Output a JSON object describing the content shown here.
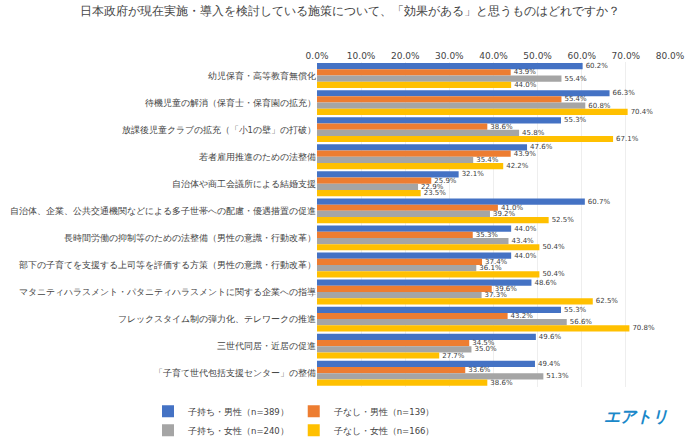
{
  "chart_data": {
    "type": "bar",
    "orientation": "horizontal",
    "title": "日本政府が現在実施・導入を検討している施策について、「効果がある」と思うものはどれですか？",
    "categories": [
      "幼児保育・高等教育無償化",
      "待機児童の解消（保育士・保育園の拡充）",
      "放課後児童クラブの拡充（「小1の壁」の打破）",
      "若者雇用推進のための法整備",
      "自治体や商工会議所による結婚支援",
      "自治体、企業、公共交通機関などによる多子世帯への配慮・優遇措置の促進",
      "長時間労働の抑制等のための法整備（男性の意識・行動改革）",
      "部下の子育てを支援する上司等を評価する方策（男性の意識・行動改革）",
      "マタニティハラスメント・パタニティハラスメントに関する企業への指導",
      "フレックスタイム制の弾力化、テレワークの推進",
      "三世代同居・近居の促進",
      "「子育て世代包括支援センター」の整備"
    ],
    "series": [
      {
        "name": "子持ち・男性（n=389）",
        "color": "#4472c4",
        "values": [
          60.2,
          66.3,
          55.3,
          47.6,
          32.1,
          60.7,
          44.0,
          44.0,
          48.6,
          55.3,
          49.6,
          49.4
        ],
        "value_labels": [
          "60.2%",
          "66.3%",
          "55.3%",
          "47.6%",
          "32.1%",
          "60.7%",
          "44.0%",
          "44.0%",
          "48.6%",
          "55.3%",
          "49.6%",
          "49.4%"
        ]
      },
      {
        "name": "子なし・男性（n=139）",
        "color": "#ed7d31",
        "values": [
          43.9,
          55.4,
          38.6,
          43.9,
          25.9,
          41.0,
          35.3,
          37.4,
          39.6,
          43.2,
          34.5,
          33.6
        ],
        "value_labels": [
          "43.9%",
          "55.4%",
          "38.6%",
          "43.9%",
          "25.9%",
          "41.0%",
          "35.3%",
          "37.4%",
          "39.6%",
          "43.2%",
          "34.5%",
          "33.6%"
        ]
      },
      {
        "name": "子持ち・女性（n=240）",
        "color": "#a5a5a5",
        "values": [
          55.4,
          60.8,
          45.8,
          35.4,
          22.9,
          39.2,
          43.4,
          36.1,
          37.3,
          56.6,
          35.0,
          51.3
        ],
        "value_labels": [
          "55.4%",
          "60.8%",
          "45.8%",
          "35.4%",
          "22.9%",
          "39.2%",
          "43.4%",
          "36.1%",
          "37.3%",
          "56.6%",
          "35.0%",
          "51.3%"
        ]
      },
      {
        "name": "子なし・女性（n=166）",
        "color": "#ffc000",
        "values": [
          44.0,
          70.4,
          67.1,
          42.2,
          23.5,
          52.5,
          50.4,
          50.4,
          62.5,
          70.8,
          27.7,
          38.6
        ],
        "value_labels": [
          "44.0%",
          "70.4%",
          "67.1%",
          "42.2%",
          "23.5%",
          "52.5%",
          "50.4%",
          "50.4%",
          "62.5%",
          "70.8%",
          "27.7%",
          "38.6%"
        ]
      }
    ],
    "xlim": [
      0,
      80
    ],
    "xticks": [
      {
        "value": 0,
        "label": "0.0%"
      },
      {
        "value": 10,
        "label": "10.0%"
      },
      {
        "value": 20,
        "label": "20.0%"
      },
      {
        "value": 30,
        "label": "30.0%"
      },
      {
        "value": 40,
        "label": "40.0%"
      },
      {
        "value": 50,
        "label": "50.0%"
      },
      {
        "value": 60,
        "label": "60.0%"
      },
      {
        "value": 70,
        "label": "70.0%"
      },
      {
        "value": 80,
        "label": "80.0%"
      }
    ],
    "grid": true,
    "legend": "bottom",
    "data_labels": true,
    "annotations": [
      "エアトリ"
    ]
  }
}
